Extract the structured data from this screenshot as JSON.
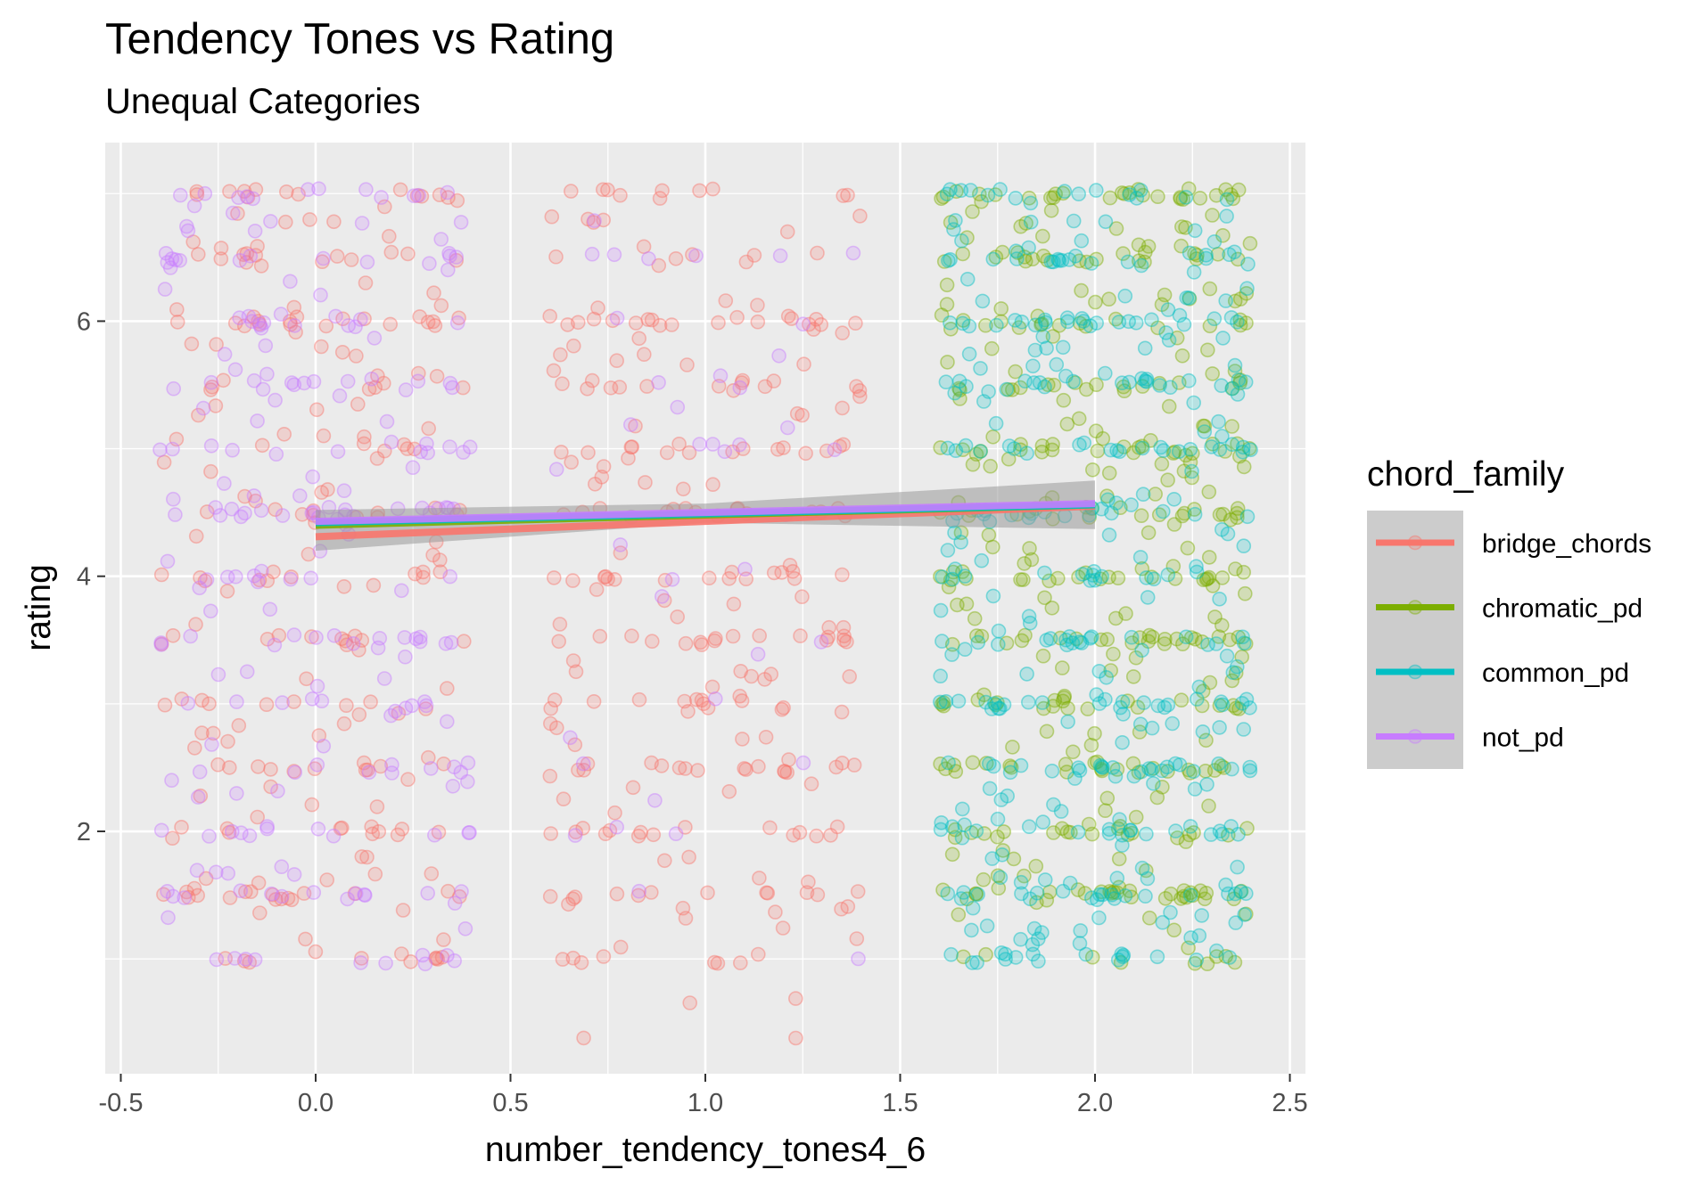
{
  "chart_data": {
    "type": "scatter",
    "title": "Tendency Tones vs Rating",
    "subtitle": "Unequal Categories",
    "xlabel": "number_tendency_tones4_6",
    "ylabel": "rating",
    "xlim": [
      -0.54,
      2.54
    ],
    "ylim": [
      0.1,
      7.4
    ],
    "x_ticks": [
      -0.5,
      0.0,
      0.5,
      1.0,
      1.5,
      2.0,
      2.5
    ],
    "x_tick_labels": [
      "-0.5",
      "0.0",
      "0.5",
      "1.0",
      "1.5",
      "2.0",
      "2.5"
    ],
    "y_ticks": [
      2,
      4,
      6
    ],
    "y_tick_labels": [
      "2",
      "4",
      "6"
    ],
    "grid": true,
    "legend": {
      "title": "chord_family",
      "position": "right",
      "entries": [
        "bridge_chords",
        "chromatic_pd",
        "common_pd",
        "not_pd"
      ]
    },
    "series": [
      {
        "name": "bridge_chords",
        "color": "#F8766D",
        "x_groups": [
          0,
          1
        ],
        "jitter_width": 0.4,
        "point_count_per_group": [
          230,
          260
        ],
        "trend": {
          "x": [
            0,
            2
          ],
          "y": [
            4.31,
            4.55
          ]
        }
      },
      {
        "name": "chromatic_pd",
        "color": "#7CAE00",
        "x_groups": [
          2
        ],
        "jitter_width": 0.4,
        "point_count_per_group": [
          420
        ],
        "trend": {
          "x": [
            0,
            2
          ],
          "y": [
            4.4,
            4.56
          ]
        }
      },
      {
        "name": "common_pd",
        "color": "#00BFC4",
        "x_groups": [
          2
        ],
        "jitter_width": 0.4,
        "point_count_per_group": [
          400
        ],
        "trend": {
          "x": [
            0,
            2
          ],
          "y": [
            4.42,
            4.56
          ]
        }
      },
      {
        "name": "not_pd",
        "color": "#C77CFF",
        "x_groups": [
          0,
          1
        ],
        "jitter_width": 0.4,
        "point_count_per_group": [
          230,
          40
        ],
        "trend": {
          "x": [
            0,
            2
          ],
          "y": [
            4.43,
            4.57
          ]
        }
      }
    ],
    "confidence_band": {
      "x": [
        0,
        1,
        2
      ],
      "lower": [
        4.2,
        4.42,
        4.37
      ],
      "upper": [
        4.52,
        4.57,
        4.75
      ],
      "color": "#999999"
    },
    "common_rating_levels": [
      1,
      1.5,
      2,
      2.5,
      3,
      3.5,
      4,
      4.5,
      5,
      5.5,
      6,
      6.5,
      7
    ]
  }
}
